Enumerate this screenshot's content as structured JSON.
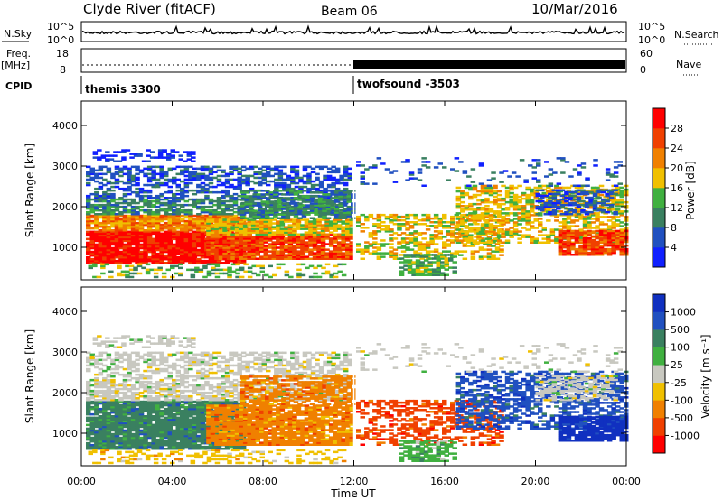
{
  "header": {
    "station": "Clyde River (fitACF)",
    "beam": "Beam 06",
    "date": "10/Mar/2016"
  },
  "strips": {
    "nsky_label": "N.Sky",
    "nsky_ticks": [
      "10^5",
      "10^0"
    ],
    "nsearch_label": "N.Search",
    "freq_label": "Freq.",
    "freq_unit": "[MHz]",
    "freq_ticks": [
      "18",
      "8"
    ],
    "nave_ticks": [
      "60",
      "0"
    ],
    "nave_label": "Nave",
    "cpid_label": "CPID"
  },
  "cpid_programs": [
    {
      "name": "themis 3300",
      "start_hour": 0
    },
    {
      "name": "twofsound -3503",
      "start_hour": 12
    }
  ],
  "colors": {
    "power": [
      "#1020ff",
      "#2050c0",
      "#3a8060",
      "#40b040",
      "#f0c000",
      "#f08000",
      "#f04000",
      "#ff0000"
    ],
    "velocity": [
      "#ff0000",
      "#f04000",
      "#f08000",
      "#f0c000",
      "#c8c8c0",
      "#40b040",
      "#3a8060",
      "#2050c0",
      "#1030c0"
    ]
  },
  "chart_data": [
    {
      "type": "heatmap",
      "name": "power",
      "xlabel": "",
      "ylabel": "Slant Range [km]",
      "xlim": [
        0,
        24
      ],
      "ylim": [
        200,
        4600
      ],
      "yticks": [
        1000,
        2000,
        3000,
        4000
      ],
      "colorbar": {
        "label": "Power [dB]",
        "ticks": [
          "4",
          "8",
          "12",
          "16",
          "20",
          "24",
          "28"
        ],
        "range": [
          0,
          32
        ]
      }
    },
    {
      "type": "heatmap",
      "name": "velocity",
      "xlabel": "Time UT",
      "ylabel": "Slant Range [km]",
      "xlim": [
        0,
        24
      ],
      "ylim": [
        200,
        4600
      ],
      "yticks": [
        1000,
        2000,
        3000,
        4000
      ],
      "xticks": [
        "00:00",
        "04:00",
        "08:00",
        "12:00",
        "16:00",
        "20:00",
        "00:00"
      ],
      "colorbar": {
        "label": "Velocity [m s⁻¹]",
        "ticks": [
          "-1000",
          "-500",
          "-100",
          "-25",
          "25",
          "100",
          "500",
          "1000"
        ]
      }
    }
  ]
}
